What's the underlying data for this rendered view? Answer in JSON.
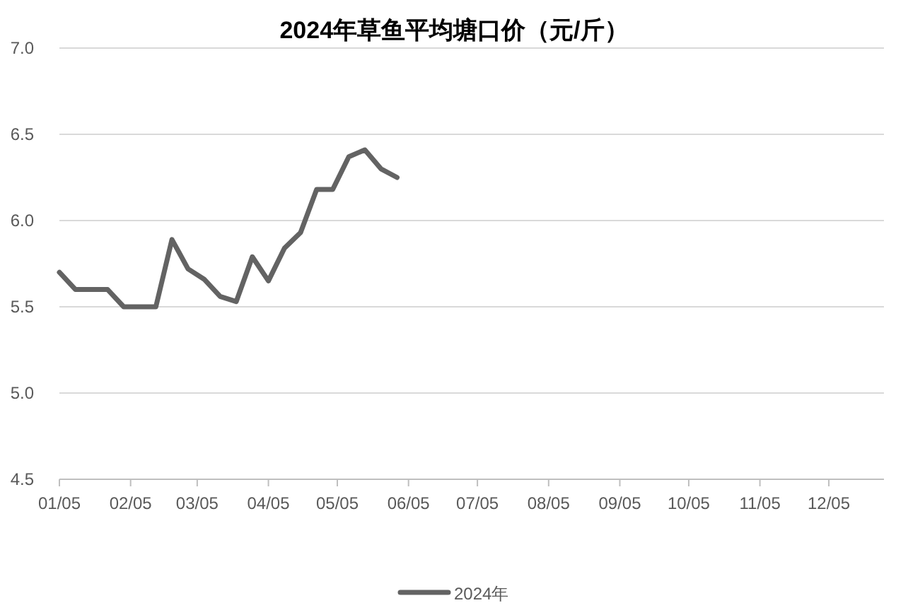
{
  "chart_data": {
    "type": "line",
    "title": "2024年草鱼平均塘口价（元/斤）",
    "x": [
      "2024-01-05",
      "2024-01-12",
      "2024-01-19",
      "2024-01-26",
      "2024-02-02",
      "2024-02-09",
      "2024-02-16",
      "2024-02-23",
      "2024-03-01",
      "2024-03-08",
      "2024-03-15",
      "2024-03-22",
      "2024-03-29",
      "2024-04-05",
      "2024-04-12",
      "2024-04-19",
      "2024-04-26",
      "2024-05-03",
      "2024-05-10",
      "2024-05-17",
      "2024-05-24",
      "2024-05-31"
    ],
    "series": [
      {
        "name": "2024年",
        "color": "#636363",
        "values": [
          5.7,
          5.6,
          5.6,
          5.6,
          5.5,
          5.5,
          5.5,
          5.89,
          5.72,
          5.66,
          5.56,
          5.53,
          5.79,
          5.65,
          5.84,
          5.93,
          6.18,
          6.18,
          6.37,
          6.41,
          6.3,
          6.25
        ]
      }
    ],
    "xlim": [
      "2024-01-05",
      "2024-12-29"
    ],
    "xticks": [
      {
        "value": "2024-01-05",
        "label": "01/05"
      },
      {
        "value": "2024-02-05",
        "label": "02/05"
      },
      {
        "value": "2024-03-05",
        "label": "03/05"
      },
      {
        "value": "2024-04-05",
        "label": "04/05"
      },
      {
        "value": "2024-05-05",
        "label": "05/05"
      },
      {
        "value": "2024-06-05",
        "label": "06/05"
      },
      {
        "value": "2024-07-05",
        "label": "07/05"
      },
      {
        "value": "2024-08-05",
        "label": "08/05"
      },
      {
        "value": "2024-09-05",
        "label": "09/05"
      },
      {
        "value": "2024-10-05",
        "label": "10/05"
      },
      {
        "value": "2024-11-05",
        "label": "11/05"
      },
      {
        "value": "2024-12-05",
        "label": "12/05"
      }
    ],
    "ylim": [
      4.5,
      7.0
    ],
    "yticks": [
      {
        "value": 4.5,
        "label": "4.5"
      },
      {
        "value": 5.0,
        "label": "5.0"
      },
      {
        "value": 5.5,
        "label": "5.5"
      },
      {
        "value": 6.0,
        "label": "6.0"
      },
      {
        "value": 6.5,
        "label": "6.5"
      },
      {
        "value": 7.0,
        "label": "7.0"
      }
    ],
    "grid": "y",
    "legend": "bottom",
    "marker": "none",
    "line_style": "solid"
  }
}
